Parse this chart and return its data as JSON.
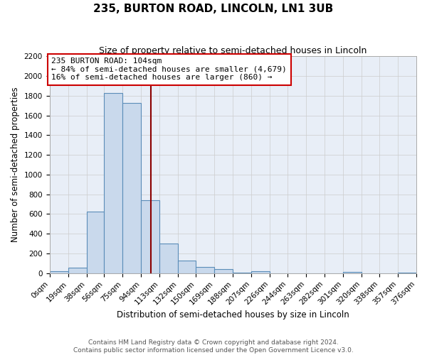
{
  "title": "235, BURTON ROAD, LINCOLN, LN1 3UB",
  "subtitle": "Size of property relative to semi-detached houses in Lincoln",
  "xlabel": "Distribution of semi-detached houses by size in Lincoln",
  "ylabel": "Number of semi-detached properties",
  "bin_edges": [
    0,
    19,
    38,
    56,
    75,
    94,
    113,
    132,
    150,
    169,
    188,
    207,
    226,
    244,
    263,
    282,
    301,
    320,
    338,
    357,
    376
  ],
  "bin_labels": [
    "0sqm",
    "19sqm",
    "38sqm",
    "56sqm",
    "75sqm",
    "94sqm",
    "113sqm",
    "132sqm",
    "150sqm",
    "169sqm",
    "188sqm",
    "207sqm",
    "226sqm",
    "244sqm",
    "263sqm",
    "282sqm",
    "301sqm",
    "320sqm",
    "338sqm",
    "357sqm",
    "376sqm"
  ],
  "counts": [
    20,
    60,
    625,
    1830,
    1725,
    740,
    300,
    130,
    65,
    40,
    5,
    20,
    0,
    0,
    0,
    0,
    10,
    0,
    0,
    5
  ],
  "bar_facecolor": "#c9d9ec",
  "bar_edgecolor": "#5b8db8",
  "vline_x": 104,
  "vline_color": "#8b0000",
  "annotation_line1": "235 BURTON ROAD: 104sqm",
  "annotation_line2": "← 84% of semi-detached houses are smaller (4,679)",
  "annotation_line3": "16% of semi-detached houses are larger (860) →",
  "annotation_box_edgecolor": "#cc0000",
  "annotation_box_facecolor": "white",
  "ylim": [
    0,
    2200
  ],
  "yticks": [
    0,
    200,
    400,
    600,
    800,
    1000,
    1200,
    1400,
    1600,
    1800,
    2000,
    2200
  ],
  "grid_color": "#cccccc",
  "background_color": "#e8eef7",
  "footer1": "Contains HM Land Registry data © Crown copyright and database right 2024.",
  "footer2": "Contains public sector information licensed under the Open Government Licence v3.0.",
  "title_fontsize": 11,
  "subtitle_fontsize": 9,
  "axis_label_fontsize": 8.5,
  "tick_fontsize": 7.5,
  "annotation_fontsize": 8,
  "footer_fontsize": 6.5
}
